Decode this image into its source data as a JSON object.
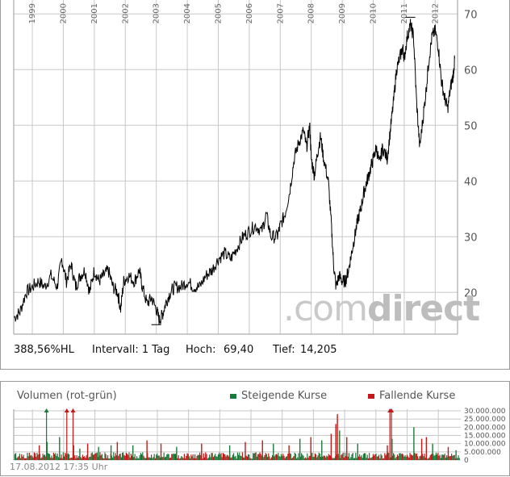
{
  "colors": {
    "line": "#000000",
    "grid": "#c8c8c8",
    "rising": "#1a7a3a",
    "falling": "#c41818",
    "watermark_gray": "#c9c9c9"
  },
  "chart_data": [
    {
      "type": "line",
      "title": "",
      "x_ticks": [
        "1999",
        "2000",
        "2001",
        "2002",
        "2003",
        "2004",
        "2005",
        "2006",
        "2007",
        "2008",
        "2009",
        "2010",
        "2011",
        "2012"
      ],
      "y_ticks": [
        20,
        30,
        40,
        50,
        60,
        70
      ],
      "ylim": [
        12.5,
        72.5
      ],
      "xlim": [
        1998.4,
        2012.72
      ],
      "grid": true,
      "series": [
        {
          "points": [
            [
              1998.42,
              15.5
            ],
            [
              1998.6,
              16.5
            ],
            [
              1998.8,
              20
            ],
            [
              1999.0,
              21
            ],
            [
              1999.2,
              22
            ],
            [
              1999.4,
              21
            ],
            [
              1999.6,
              23
            ],
            [
              1999.8,
              21
            ],
            [
              1999.95,
              26
            ],
            [
              2000.1,
              22
            ],
            [
              2000.25,
              25
            ],
            [
              2000.4,
              21
            ],
            [
              2000.55,
              23
            ],
            [
              2000.7,
              24
            ],
            [
              2000.85,
              20
            ],
            [
              2001.0,
              24
            ],
            [
              2001.15,
              22
            ],
            [
              2001.3,
              23
            ],
            [
              2001.45,
              24
            ],
            [
              2001.6,
              21
            ],
            [
              2001.75,
              20
            ],
            [
              2001.85,
              17
            ],
            [
              2001.95,
              22
            ],
            [
              2002.1,
              23
            ],
            [
              2002.3,
              22
            ],
            [
              2002.45,
              24
            ],
            [
              2002.55,
              21
            ],
            [
              2002.7,
              18
            ],
            [
              2002.85,
              19
            ],
            [
              2003.0,
              17
            ],
            [
              2003.1,
              15
            ],
            [
              2003.2,
              16
            ],
            [
              2003.3,
              18
            ],
            [
              2003.45,
              20
            ],
            [
              2003.6,
              21
            ],
            [
              2003.8,
              21
            ],
            [
              2004.0,
              22
            ],
            [
              2004.2,
              21
            ],
            [
              2004.4,
              21
            ],
            [
              2004.6,
              23
            ],
            [
              2004.8,
              24
            ],
            [
              2005.0,
              26
            ],
            [
              2005.2,
              27
            ],
            [
              2005.4,
              26
            ],
            [
              2005.6,
              28
            ],
            [
              2005.8,
              30
            ],
            [
              2006.0,
              31
            ],
            [
              2006.2,
              32
            ],
            [
              2006.4,
              31
            ],
            [
              2006.55,
              34
            ],
            [
              2006.7,
              30
            ],
            [
              2006.9,
              30
            ],
            [
              2007.0,
              32
            ],
            [
              2007.15,
              34
            ],
            [
              2007.3,
              38
            ],
            [
              2007.45,
              44
            ],
            [
              2007.6,
              47
            ],
            [
              2007.75,
              49
            ],
            [
              2007.85,
              46
            ],
            [
              2007.95,
              50
            ],
            [
              2008.0,
              44
            ],
            [
              2008.1,
              41
            ],
            [
              2008.2,
              45
            ],
            [
              2008.3,
              48
            ],
            [
              2008.4,
              44
            ],
            [
              2008.55,
              40
            ],
            [
              2008.65,
              32
            ],
            [
              2008.72,
              25
            ],
            [
              2008.8,
              21
            ],
            [
              2008.9,
              23
            ],
            [
              2009.0,
              22
            ],
            [
              2009.1,
              22
            ],
            [
              2009.2,
              24
            ],
            [
              2009.3,
              27
            ],
            [
              2009.4,
              30
            ],
            [
              2009.5,
              33
            ],
            [
              2009.6,
              35
            ],
            [
              2009.7,
              38
            ],
            [
              2009.8,
              40
            ],
            [
              2009.9,
              42
            ],
            [
              2010.0,
              44
            ],
            [
              2010.1,
              46
            ],
            [
              2010.2,
              43
            ],
            [
              2010.3,
              46
            ],
            [
              2010.45,
              44
            ],
            [
              2010.55,
              49
            ],
            [
              2010.65,
              54
            ],
            [
              2010.75,
              60
            ],
            [
              2010.85,
              62
            ],
            [
              2010.95,
              64
            ],
            [
              2011.0,
              62
            ],
            [
              2011.1,
              66
            ],
            [
              2011.2,
              68
            ],
            [
              2011.3,
              66
            ],
            [
              2011.4,
              54
            ],
            [
              2011.5,
              46
            ],
            [
              2011.6,
              51
            ],
            [
              2011.7,
              56
            ],
            [
              2011.8,
              62
            ],
            [
              2011.9,
              66
            ],
            [
              2012.0,
              67
            ],
            [
              2012.1,
              64
            ],
            [
              2012.2,
              58
            ],
            [
              2012.3,
              55
            ],
            [
              2012.4,
              53
            ],
            [
              2012.5,
              57
            ],
            [
              2012.58,
              59
            ],
            [
              2012.63,
              62
            ]
          ]
        }
      ]
    },
    {
      "type": "bar",
      "title": "Volumen (rot-grün)",
      "legend": [
        "Steigende Kurse",
        "Fallende Kurse"
      ],
      "legend_placement": "top-right",
      "y_ticks_labels": [
        "30.000.000",
        "25.000.000",
        "20.000.000",
        "15.000.000",
        "10.000.000",
        "5.000.000",
        "0"
      ],
      "y_ticks": [
        30000000,
        25000000,
        20000000,
        15000000,
        10000000,
        5000000,
        0
      ],
      "ylim": [
        0,
        31000000
      ],
      "grid": true,
      "baseline_volume": 2500000,
      "spikes": [
        [
          1999.2,
          9000000,
          "r"
        ],
        [
          1999.45,
          11000000,
          "g"
        ],
        [
          1999.85,
          14000000,
          "g"
        ],
        [
          2000.3,
          9000000,
          "r"
        ],
        [
          2000.5,
          7000000,
          "g"
        ],
        [
          2000.75,
          10000000,
          "r"
        ],
        [
          2001.1,
          8000000,
          "g"
        ],
        [
          2001.5,
          9000000,
          "g"
        ],
        [
          2001.7,
          11000000,
          "r"
        ],
        [
          2002.2,
          9000000,
          "g"
        ],
        [
          2002.65,
          12000000,
          "r"
        ],
        [
          2003.1,
          10000000,
          "r"
        ],
        [
          2003.6,
          8000000,
          "g"
        ],
        [
          2004.4,
          10000000,
          "r"
        ],
        [
          2005.3,
          9000000,
          "g"
        ],
        [
          2005.8,
          11000000,
          "r"
        ],
        [
          2006.35,
          12000000,
          "r"
        ],
        [
          2006.7,
          10000000,
          "g"
        ],
        [
          2007.2,
          9000000,
          "r"
        ],
        [
          2007.55,
          13000000,
          "g"
        ],
        [
          2007.9,
          14000000,
          "r"
        ],
        [
          2008.25,
          12000000,
          "g"
        ],
        [
          2008.55,
          16000000,
          "r"
        ],
        [
          2008.7,
          22000000,
          "r"
        ],
        [
          2008.75,
          28000000,
          "r"
        ],
        [
          2008.82,
          18000000,
          "g"
        ],
        [
          2009.05,
          14000000,
          "r"
        ],
        [
          2009.4,
          10000000,
          "g"
        ],
        [
          2010.35,
          9000000,
          "r"
        ],
        [
          2010.5,
          13000000,
          "g"
        ],
        [
          2011.2,
          20000000,
          "g"
        ],
        [
          2011.45,
          13000000,
          "r"
        ],
        [
          2011.6,
          14000000,
          "r"
        ],
        [
          2011.8,
          10000000,
          "g"
        ],
        [
          2012.3,
          8000000,
          "r"
        ],
        [
          2012.55,
          6000000,
          "g"
        ]
      ],
      "clipped_spikes": [
        [
          1999.45,
          "g"
        ],
        [
          2000.1,
          "r"
        ],
        [
          2000.3,
          "r"
        ],
        [
          2010.45,
          "r"
        ],
        [
          2010.5,
          "r"
        ]
      ]
    }
  ],
  "stats": {
    "performance": "388,56%HL",
    "interval": "Intervall: 1 Tag",
    "high_label": "Hoch:",
    "high_value": "69,40",
    "low_label": "Tief:",
    "low_value": "14,205"
  },
  "volume_panel": {
    "title": "Volumen (rot-grün)",
    "rising_label": "Steigende Kurse",
    "falling_label": "Fallende Kurse"
  },
  "watermark": {
    "part1": ".com",
    "part2": "direct"
  },
  "timestamp": "17.08.2012 17:35 Uhr"
}
